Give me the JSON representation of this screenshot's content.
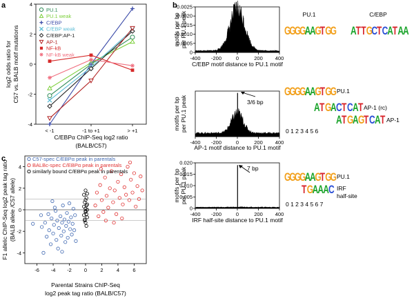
{
  "colors": {
    "pu1": "#2e8b57",
    "pu1_weak": "#7ccf3a",
    "cebp": "#3a4aa8",
    "cebp_weak": "#5bbcd6",
    "cebp_ap1": "#222222",
    "ap1": "#b22222",
    "nfkb": "#d62a2a",
    "nfkb_weak": "#f07080",
    "c57_spec": "#3d66b0",
    "balbc_spec": "#e03030",
    "similar": "#000000"
  },
  "panel_labels": {
    "a": "a",
    "b": "b",
    "c": "c"
  },
  "chart_data": [
    {
      "id": "panel-a",
      "type": "line",
      "categories": [
        "< -1",
        "-1 to +1",
        "> +1"
      ],
      "xlabel_lines": [
        "C/EBPα ChIP-Seq log2 ratio",
        "(BALB/C57)"
      ],
      "ylabel_lines": [
        "log2 odds ratio for",
        "C57 vs. BALB motif mutations"
      ],
      "ylim": [
        -4,
        4
      ],
      "yticks": [
        "-4",
        "-2",
        "0",
        "2",
        "4"
      ],
      "series": [
        {
          "name": "PU.1",
          "color": "#2e8b57",
          "marker": "circle-open",
          "values": [
            -2.1,
            0.0,
            1.8
          ]
        },
        {
          "name": "PU.1 weak",
          "color": "#7ccf3a",
          "marker": "triangle-open",
          "values": [
            -1.6,
            0.1,
            1.5
          ]
        },
        {
          "name": "C/EBP",
          "color": "#3a4aa8",
          "marker": "plus",
          "values": [
            -4.0,
            0.0,
            3.7
          ]
        },
        {
          "name": "C/EBP weak",
          "color": "#5bbcd6",
          "marker": "x",
          "values": [
            -2.4,
            -0.2,
            2.3
          ]
        },
        {
          "name": "C/EBP:AP-1",
          "color": "#222222",
          "marker": "diamond-open",
          "values": [
            -2.8,
            -0.3,
            2.2
          ]
        },
        {
          "name": "AP-1",
          "color": "#b22222",
          "marker": "triangle-down-open",
          "values": [
            -3.6,
            -1.1,
            2.4
          ]
        },
        {
          "name": "NF-kB",
          "color": "#d62a2a",
          "marker": "square-filled",
          "values": [
            0.2,
            0.6,
            -0.4
          ]
        },
        {
          "name": "NF-kB weak",
          "color": "#f07080",
          "marker": "asterisk",
          "values": [
            -0.9,
            0.3,
            -0.1
          ]
        }
      ]
    },
    {
      "id": "panel-c",
      "type": "scatter",
      "xlabel_lines": [
        "Parental Strains ChIP-Seq",
        "log2 peak tag ratio (BALB/C57)"
      ],
      "ylabel_lines": [
        "F1 allelic ChIP-Seq log2 peak tag ratio",
        "(BALB allele /C57 allele)"
      ],
      "xlim": [
        -7.5,
        7.5
      ],
      "ylim": [
        -5,
        5
      ],
      "xticks": [
        "-6",
        "-4",
        "-2",
        "0",
        "2",
        "4",
        "6"
      ],
      "yticks": [
        "-4",
        "-2",
        "0",
        "2",
        "4"
      ],
      "legend": [
        "C57-spec C/EBPα peak in parentals",
        "BALBc-spec C/EBPα peak in parentals",
        "similarly bound C/EBPα peak in parentals"
      ],
      "series": [
        {
          "name": "C57-spec",
          "color": "#3d66b0",
          "points": [
            [
              -5.5,
              -0.5
            ],
            [
              -5.4,
              -1.6
            ],
            [
              -5.0,
              -1.2
            ],
            [
              -4.8,
              -2.5
            ],
            [
              -4.6,
              -0.4
            ],
            [
              -4.5,
              -1.9
            ],
            [
              -4.3,
              -3.2
            ],
            [
              -4.2,
              -0.8
            ],
            [
              -4.0,
              -2.2
            ],
            [
              -3.9,
              -1.4
            ],
            [
              -3.8,
              0.2
            ],
            [
              -3.6,
              -2.8
            ],
            [
              -3.5,
              -1.0
            ],
            [
              -3.4,
              -3.6
            ],
            [
              -3.3,
              -1.7
            ],
            [
              -3.1,
              -0.6
            ],
            [
              -3.0,
              -2.4
            ],
            [
              -2.9,
              -1.2
            ],
            [
              -2.8,
              0.4
            ],
            [
              -2.7,
              -2.0
            ],
            [
              -2.6,
              -0.9
            ],
            [
              -2.5,
              -3.0
            ],
            [
              -2.4,
              -1.5
            ],
            [
              -2.3,
              -0.3
            ],
            [
              -2.2,
              -2.6
            ],
            [
              -2.1,
              -1.1
            ],
            [
              -2.0,
              0.6
            ],
            [
              -1.9,
              -1.8
            ],
            [
              -1.8,
              -0.7
            ],
            [
              -1.7,
              -2.3
            ],
            [
              -1.6,
              -1.3
            ],
            [
              -1.5,
              0.1
            ],
            [
              -1.4,
              -1.9
            ],
            [
              -1.3,
              -0.5
            ],
            [
              -1.2,
              -2.9
            ],
            [
              -5.2,
              -4.0
            ],
            [
              -4.1,
              0.8
            ],
            [
              -3.7,
              -0.1
            ],
            [
              -2.9,
              -3.9
            ],
            [
              -6.5,
              -1.3
            ]
          ]
        },
        {
          "name": "BALBc-spec",
          "color": "#e03030",
          "points": [
            [
              1.2,
              0.4
            ],
            [
              1.4,
              1.6
            ],
            [
              1.6,
              -0.6
            ],
            [
              1.8,
              2.3
            ],
            [
              2.0,
              0.9
            ],
            [
              2.2,
              -0.2
            ],
            [
              2.4,
              3.0
            ],
            [
              2.6,
              1.3
            ],
            [
              2.8,
              0.2
            ],
            [
              3.0,
              2.0
            ],
            [
              3.2,
              3.6
            ],
            [
              3.4,
              0.7
            ],
            [
              3.6,
              1.8
            ],
            [
              3.8,
              -0.4
            ],
            [
              4.0,
              2.6
            ],
            [
              4.2,
              1.1
            ],
            [
              4.4,
              3.3
            ],
            [
              4.6,
              0.5
            ],
            [
              4.8,
              2.1
            ],
            [
              5.0,
              1.4
            ],
            [
              5.2,
              4.0
            ],
            [
              5.4,
              0.9
            ],
            [
              5.6,
              2.8
            ],
            [
              5.8,
              1.6
            ],
            [
              6.0,
              3.4
            ],
            [
              6.2,
              0.3
            ],
            [
              6.4,
              2.2
            ],
            [
              6.6,
              1.0
            ],
            [
              6.8,
              3.1
            ],
            [
              7.0,
              1.8
            ],
            [
              3.5,
              -1.2
            ],
            [
              2.5,
              -1.0
            ],
            [
              4.5,
              -0.8
            ],
            [
              5.5,
              4.4
            ],
            [
              1.9,
              3.8
            ]
          ]
        },
        {
          "name": "similar",
          "color": "#000000",
          "points": [
            [
              -0.2,
              0.3
            ],
            [
              0.1,
              -0.4
            ],
            [
              0.0,
              0.9
            ],
            [
              -0.1,
              -1.0
            ],
            [
              0.2,
              0.5
            ],
            [
              0.0,
              -0.2
            ],
            [
              -0.2,
              1.4
            ],
            [
              0.1,
              -1.5
            ],
            [
              0.0,
              0.1
            ],
            [
              0.2,
              -0.7
            ],
            [
              -0.1,
              0.7
            ],
            [
              0.0,
              -1.2
            ],
            [
              0.1,
              1.1
            ],
            [
              -0.2,
              -0.5
            ],
            [
              0.2,
              0.0
            ],
            [
              0.0,
              1.8
            ],
            [
              -0.1,
              -0.9
            ],
            [
              0.1,
              0.4
            ],
            [
              0.0,
              -0.1
            ],
            [
              0.2,
              1.5
            ]
          ]
        }
      ]
    },
    {
      "id": "panel-b-cebp",
      "type": "histogram",
      "xlabel": "C/EBP motif distance to PU.1 motif",
      "ylabel_lines": [
        "motifs per bp",
        "per PU.1 peak"
      ],
      "xlim": [
        -400,
        400
      ],
      "ylim": [
        0,
        0.0025
      ],
      "xticks": [
        "-400",
        "-200",
        "0",
        "200",
        "400"
      ],
      "yticks": [
        "0",
        "0.0005",
        "0.0010",
        "0.0015",
        "0.0020",
        "0.0025"
      ],
      "peak_height": 0.0024,
      "baseline": 0.0001,
      "spike": null
    },
    {
      "id": "panel-b-ap1",
      "type": "histogram",
      "xlabel": "AP-1 motif distance to PU.1 motif",
      "ylabel_lines": [
        "motifs per bp",
        "per PU.1 peak"
      ],
      "xlim": [
        -400,
        400
      ],
      "ylim": [
        0,
        0.0025
      ],
      "xticks": [
        "-400",
        "-200",
        "0",
        "200",
        "400"
      ],
      "yticks": [],
      "peak_height": 0.0013,
      "baseline": 0.0002,
      "spike": 0.0024,
      "annotation": "3/6 bp"
    },
    {
      "id": "panel-b-irf",
      "type": "histogram",
      "xlabel": "IRF half-site distance to PU.1 motif",
      "ylabel_lines": [
        "motifs per bp",
        "per PU.1 peak"
      ],
      "xlim": [
        -400,
        400
      ],
      "ylim": [
        0,
        0.02
      ],
      "xticks": [
        "-400",
        "-200",
        "0",
        "200",
        "400"
      ],
      "yticks": [
        "0",
        "0.005",
        "0.010",
        "0.015",
        "0.020"
      ],
      "peak_height": 0.0006,
      "baseline": 0.0005,
      "spike": 0.019,
      "annotation": "7 bp"
    }
  ],
  "motifs": {
    "row1": {
      "pu1_title": "PU.1",
      "cebp_title": "C/EBP",
      "pu1_seq": "GGGGAAGTGG",
      "cebp_seq": "ATTGCTCATAA"
    },
    "row2": {
      "pu1_seq": "GGGGAAGTGG",
      "pu1_label": "PU.1",
      "ap1rc_seq": "ATGACTCAT",
      "ap1rc_label": "AP-1 (rc)",
      "ap1_seq": "ATGAGTCAT",
      "ap1_label": "AP-1",
      "positions": "0 1 2 3 4 5 6"
    },
    "row3": {
      "pu1_seq": "GGGGAAGTGG",
      "pu1_label": "PU.1",
      "irf_seq": "TGAAAC",
      "irf_label_1": "IRF",
      "irf_label_2": "half-site",
      "positions": "0 1 2 3 4 5 6 7"
    }
  }
}
